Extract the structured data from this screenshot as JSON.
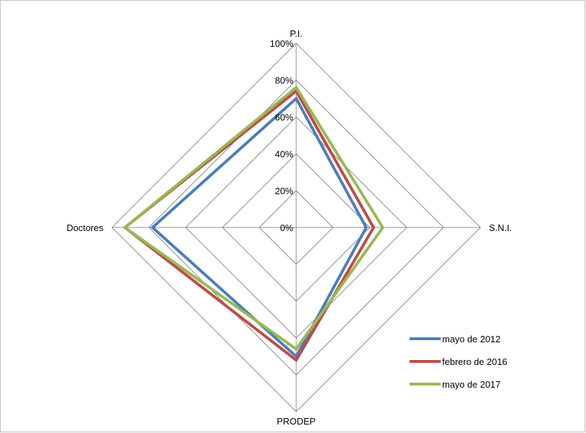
{
  "chart_data": {
    "type": "radar",
    "title": "",
    "axes": [
      "P.I.",
      "S.N.I.",
      "PRODEP",
      "Doctores"
    ],
    "rlim": [
      0,
      100
    ],
    "ticks": [
      "0%",
      "20%",
      "40%",
      "60%",
      "80%",
      "100%"
    ],
    "tick_values": [
      0,
      20,
      40,
      60,
      80,
      100
    ],
    "grid": true,
    "legend": "bottom-right",
    "series": [
      {
        "name": "mayo de 2012",
        "color": "#4a7ebb",
        "values": [
          70,
          38,
          70,
          78
        ]
      },
      {
        "name": "febrero de 2016",
        "color": "#be4b48",
        "values": [
          74,
          42,
          72,
          93
        ]
      },
      {
        "name": "mayo de 2017",
        "color": "#98b954",
        "values": [
          76,
          47,
          66,
          93
        ]
      }
    ]
  }
}
